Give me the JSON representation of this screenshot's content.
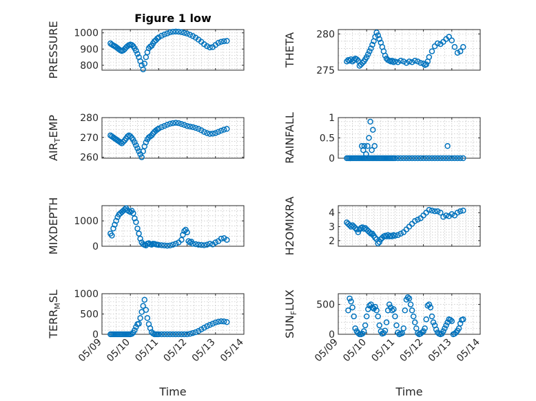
{
  "figure": {
    "title": "Figure 1 low",
    "xlabel": "Time"
  },
  "chart_data": [
    {
      "type": "scatter",
      "title": "Figure 1 low",
      "ylabel": "PRESSURE",
      "ylim": [
        770,
        1020
      ],
      "xticks": [
        "05/09",
        "05/10",
        "05/11",
        "05/12",
        "05/13",
        "05/14"
      ],
      "show_xticklabels": false,
      "yticks": [
        800,
        900,
        1000
      ],
      "grid": "minor",
      "marker": "circle-open",
      "color": "#0072bd",
      "x": [
        9.3,
        9.35,
        9.4,
        9.45,
        9.5,
        9.55,
        9.6,
        9.65,
        9.7,
        9.75,
        9.8,
        9.85,
        9.9,
        9.95,
        10.0,
        10.05,
        10.1,
        10.15,
        10.2,
        10.25,
        10.3,
        10.35,
        10.4,
        10.45,
        10.5,
        10.55,
        10.6,
        10.65,
        10.7,
        10.75,
        10.8,
        10.85,
        10.9,
        10.95,
        11.0,
        11.1,
        11.2,
        11.3,
        11.4,
        11.5,
        11.6,
        11.7,
        11.8,
        11.9,
        12.0,
        12.1,
        12.2,
        12.3,
        12.4,
        12.5,
        12.6,
        12.7,
        12.8,
        12.9,
        13.0,
        13.1,
        13.2,
        13.3,
        13.4
      ],
      "y": [
        935,
        928,
        922,
        918,
        912,
        905,
        898,
        892,
        888,
        892,
        900,
        910,
        918,
        924,
        928,
        925,
        918,
        905,
        890,
        870,
        850,
        825,
        800,
        775,
        810,
        850,
        880,
        905,
        915,
        920,
        935,
        948,
        955,
        965,
        972,
        982,
        990,
        996,
        1003,
        1007,
        1008,
        1007,
        1004,
        1000,
        995,
        988,
        980,
        970,
        958,
        945,
        930,
        918,
        910,
        912,
        925,
        938,
        945,
        948,
        950
      ]
    },
    {
      "type": "scatter",
      "ylabel": "THETA",
      "ylim": [
        275,
        280.6
      ],
      "xticks": [
        "05/09",
        "05/10",
        "05/11",
        "05/12",
        "05/13",
        "05/14"
      ],
      "show_xticklabels": false,
      "yticks": [
        275,
        280
      ],
      "grid": "minor",
      "marker": "circle-open",
      "color": "#0072bd",
      "x": [
        9.3,
        9.35,
        9.4,
        9.45,
        9.5,
        9.55,
        9.6,
        9.65,
        9.7,
        9.75,
        9.8,
        9.85,
        9.9,
        9.95,
        10.0,
        10.05,
        10.1,
        10.15,
        10.2,
        10.25,
        10.3,
        10.35,
        10.4,
        10.45,
        10.5,
        10.55,
        10.6,
        10.65,
        10.7,
        10.75,
        10.8,
        10.85,
        10.9,
        10.95,
        11.0,
        11.1,
        11.2,
        11.3,
        11.4,
        11.5,
        11.6,
        11.7,
        11.8,
        11.9,
        12.0,
        12.05,
        12.1,
        12.15,
        12.2,
        12.3,
        12.4,
        12.5,
        12.6,
        12.7,
        12.8,
        12.9,
        13.0,
        13.1,
        13.2,
        13.3,
        13.4
      ],
      "y": [
        276.2,
        276.4,
        276.3,
        276.5,
        276.2,
        276.4,
        276.6,
        276.5,
        276.3,
        275.6,
        275.8,
        276.0,
        276.2,
        276.5,
        276.8,
        277.2,
        277.6,
        278.0,
        278.5,
        279.0,
        279.6,
        280.2,
        279.8,
        279.3,
        278.8,
        278.2,
        277.6,
        277.0,
        276.6,
        276.4,
        276.3,
        276.2,
        276.3,
        276.1,
        276.2,
        276.1,
        276.3,
        276.2,
        276.0,
        276.2,
        276.1,
        276.3,
        276.2,
        276.0,
        275.9,
        275.7,
        275.8,
        276.2,
        276.8,
        277.6,
        278.3,
        278.7,
        278.6,
        278.9,
        279.3,
        279.6,
        279.1,
        278.2,
        277.4,
        277.6,
        278.2
      ]
    },
    {
      "type": "scatter",
      "ylabel": "AIR_TEMP",
      "ylim": [
        259.5,
        280
      ],
      "xticks": [
        "05/09",
        "05/10",
        "05/11",
        "05/12",
        "05/13",
        "05/14"
      ],
      "show_xticklabels": false,
      "yticks": [
        260,
        270,
        280
      ],
      "grid": "minor",
      "marker": "circle-open",
      "color": "#0072bd",
      "x": [
        9.3,
        9.35,
        9.4,
        9.45,
        9.5,
        9.55,
        9.6,
        9.65,
        9.7,
        9.75,
        9.8,
        9.85,
        9.9,
        9.95,
        10.0,
        10.05,
        10.1,
        10.15,
        10.2,
        10.25,
        10.3,
        10.35,
        10.4,
        10.45,
        10.5,
        10.55,
        10.6,
        10.65,
        10.7,
        10.75,
        10.8,
        10.85,
        10.9,
        10.95,
        11.0,
        11.1,
        11.2,
        11.3,
        11.4,
        11.5,
        11.6,
        11.7,
        11.8,
        11.9,
        12.0,
        12.1,
        12.2,
        12.3,
        12.4,
        12.5,
        12.6,
        12.7,
        12.8,
        12.9,
        13.0,
        13.1,
        13.2,
        13.3,
        13.4
      ],
      "y": [
        271,
        270.5,
        270,
        269.5,
        269,
        268.5,
        268,
        267.5,
        267,
        267.8,
        268.5,
        269.5,
        270.5,
        271,
        270.6,
        269.8,
        268.8,
        267.5,
        266,
        264.5,
        263,
        261.5,
        260,
        263,
        265.5,
        267.5,
        269,
        270,
        270.5,
        271,
        272,
        272.8,
        273.5,
        274,
        274.5,
        275.2,
        275.8,
        276.4,
        276.9,
        277.2,
        277.4,
        277.2,
        276.8,
        276.3,
        275.8,
        275.5,
        275.2,
        274.8,
        274.3,
        273.6,
        272.8,
        272.2,
        271.8,
        271.9,
        272.2,
        272.8,
        273.4,
        273.9,
        274.3
      ]
    },
    {
      "type": "scatter",
      "ylabel": "RAINFALL",
      "ylim": [
        0,
        1
      ],
      "xticks": [
        "05/09",
        "05/10",
        "05/11",
        "05/12",
        "05/13",
        "05/14"
      ],
      "show_xticklabels": false,
      "yticks": [
        0,
        0.5,
        1
      ],
      "grid": "minor",
      "marker": "circle-open",
      "color": "#0072bd",
      "x": [
        9.3,
        9.35,
        9.4,
        9.45,
        9.5,
        9.55,
        9.6,
        9.65,
        9.7,
        9.75,
        9.8,
        9.85,
        9.9,
        9.95,
        10.0,
        10.05,
        10.1,
        10.15,
        10.2,
        10.25,
        10.3,
        10.35,
        10.4,
        10.45,
        10.5,
        10.55,
        10.6,
        10.65,
        10.7,
        10.75,
        10.8,
        10.85,
        10.9,
        10.95,
        11.0,
        11.1,
        11.2,
        11.3,
        11.4,
        11.5,
        11.6,
        11.7,
        11.8,
        11.9,
        12.0,
        12.1,
        12.2,
        12.3,
        12.4,
        12.5,
        12.6,
        12.7,
        12.8,
        12.9,
        13.0,
        13.1,
        13.2,
        13.3,
        13.4,
        9.83,
        9.88,
        9.92,
        9.98,
        10.03,
        10.08,
        10.13,
        10.18,
        10.22,
        10.28,
        12.85
      ],
      "y": [
        0,
        0,
        0,
        0,
        0,
        0,
        0,
        0,
        0,
        0,
        0,
        0,
        0,
        0,
        0,
        0,
        0,
        0,
        0,
        0,
        0,
        0,
        0,
        0,
        0,
        0,
        0,
        0,
        0,
        0,
        0,
        0,
        0,
        0,
        0,
        0,
        0,
        0,
        0,
        0,
        0,
        0,
        0,
        0,
        0,
        0,
        0,
        0,
        0,
        0,
        0,
        0,
        0,
        0,
        0,
        0,
        0,
        0,
        0,
        0.3,
        0.2,
        0.3,
        0.1,
        0.3,
        0.5,
        0.9,
        0.2,
        0.7,
        0.3,
        0.3
      ]
    },
    {
      "type": "scatter",
      "ylabel": "MIXDEPTH",
      "ylim": [
        0,
        1600
      ],
      "xticks": [
        "05/09",
        "05/10",
        "05/11",
        "05/12",
        "05/13",
        "05/14"
      ],
      "show_xticklabels": false,
      "yticks": [
        0,
        1000
      ],
      "grid": "minor",
      "marker": "circle-open",
      "color": "#0072bd",
      "x": [
        9.3,
        9.35,
        9.4,
        9.45,
        9.5,
        9.55,
        9.6,
        9.65,
        9.7,
        9.75,
        9.8,
        9.85,
        9.9,
        9.95,
        10.0,
        10.05,
        10.1,
        10.15,
        10.2,
        10.25,
        10.3,
        10.35,
        10.4,
        10.45,
        10.5,
        10.55,
        10.6,
        10.65,
        10.7,
        10.75,
        10.8,
        10.85,
        10.9,
        10.95,
        11.0,
        11.1,
        11.2,
        11.3,
        11.4,
        11.5,
        11.6,
        11.7,
        11.8,
        11.85,
        11.9,
        11.95,
        12.0,
        12.05,
        12.1,
        12.15,
        12.2,
        12.3,
        12.4,
        12.5,
        12.6,
        12.7,
        12.8,
        12.9,
        13.0,
        13.1,
        13.2,
        13.3,
        13.4
      ],
      "y": [
        500,
        420,
        700,
        850,
        1000,
        1150,
        1250,
        1300,
        1350,
        1400,
        1450,
        1500,
        1420,
        1380,
        1350,
        1400,
        1300,
        1100,
        950,
        700,
        500,
        300,
        150,
        80,
        50,
        30,
        100,
        120,
        80,
        60,
        100,
        90,
        70,
        60,
        50,
        40,
        30,
        20,
        30,
        60,
        100,
        150,
        250,
        450,
        600,
        650,
        550,
        200,
        150,
        180,
        100,
        80,
        60,
        50,
        40,
        60,
        100,
        70,
        150,
        200,
        300,
        320,
        250
      ]
    },
    {
      "type": "scatter",
      "ylabel": "H2OMIXRA",
      "ylim": [
        1.6,
        4.5
      ],
      "xticks": [
        "05/09",
        "05/10",
        "05/11",
        "05/12",
        "05/13",
        "05/14"
      ],
      "show_xticklabels": false,
      "yticks": [
        2,
        3,
        4
      ],
      "grid": "minor",
      "marker": "circle-open",
      "color": "#0072bd",
      "x": [
        9.3,
        9.35,
        9.4,
        9.45,
        9.5,
        9.55,
        9.6,
        9.65,
        9.7,
        9.75,
        9.8,
        9.85,
        9.9,
        9.95,
        10.0,
        10.05,
        10.1,
        10.15,
        10.2,
        10.25,
        10.3,
        10.35,
        10.4,
        10.45,
        10.5,
        10.55,
        10.6,
        10.65,
        10.7,
        10.75,
        10.8,
        10.85,
        10.9,
        10.95,
        11.0,
        11.1,
        11.2,
        11.3,
        11.4,
        11.5,
        11.6,
        11.7,
        11.8,
        11.9,
        12.0,
        12.1,
        12.2,
        12.3,
        12.4,
        12.5,
        12.6,
        12.7,
        12.8,
        12.9,
        13.0,
        13.1,
        13.2,
        13.3,
        13.4
      ],
      "y": [
        3.3,
        3.2,
        3.1,
        3.0,
        3.1,
        3.0,
        2.9,
        2.8,
        2.6,
        2.8,
        2.9,
        2.95,
        2.85,
        2.9,
        2.8,
        2.7,
        2.6,
        2.5,
        2.5,
        2.35,
        2.2,
        2.1,
        1.8,
        1.9,
        2.1,
        2.2,
        2.3,
        2.35,
        2.3,
        2.4,
        2.3,
        2.35,
        2.3,
        2.4,
        2.35,
        2.4,
        2.5,
        2.6,
        2.8,
        3.0,
        3.2,
        3.4,
        3.5,
        3.6,
        3.8,
        4.0,
        4.2,
        4.15,
        4.1,
        4.1,
        4.0,
        3.7,
        3.8,
        3.75,
        3.9,
        3.8,
        4.0,
        4.1,
        4.15
      ]
    },
    {
      "type": "scatter",
      "ylabel": "TERR_MSL",
      "ylim": [
        0,
        1000
      ],
      "xticks": [
        "05/09",
        "05/10",
        "05/11",
        "05/12",
        "05/13",
        "05/14"
      ],
      "show_xticklabels": true,
      "yticks": [
        0,
        500,
        1000
      ],
      "grid": "minor",
      "marker": "circle-open",
      "color": "#0072bd",
      "x": [
        9.3,
        9.35,
        9.4,
        9.45,
        9.5,
        9.55,
        9.6,
        9.65,
        9.7,
        9.75,
        9.8,
        9.85,
        9.9,
        9.95,
        10.0,
        10.05,
        10.1,
        10.15,
        10.2,
        10.25,
        10.3,
        10.35,
        10.4,
        10.45,
        10.5,
        10.55,
        10.6,
        10.65,
        10.7,
        10.75,
        10.8,
        10.85,
        10.9,
        10.95,
        11.0,
        11.1,
        11.2,
        11.3,
        11.4,
        11.5,
        11.6,
        11.7,
        11.8,
        11.9,
        12.0,
        12.1,
        12.2,
        12.3,
        12.4,
        12.5,
        12.6,
        12.7,
        12.8,
        12.9,
        13.0,
        13.1,
        13.2,
        13.3,
        13.4
      ],
      "y": [
        0,
        0,
        0,
        0,
        0,
        0,
        0,
        0,
        0,
        0,
        0,
        0,
        0,
        0,
        0,
        10,
        40,
        100,
        180,
        250,
        260,
        400,
        550,
        700,
        850,
        600,
        400,
        250,
        150,
        50,
        20,
        0,
        0,
        0,
        0,
        0,
        0,
        0,
        0,
        0,
        0,
        0,
        0,
        0,
        0,
        10,
        30,
        50,
        80,
        120,
        160,
        200,
        230,
        260,
        290,
        310,
        320,
        315,
        300
      ]
    },
    {
      "type": "scatter",
      "ylabel": "SUN_FLUX",
      "ylim": [
        0,
        680
      ],
      "xticks": [
        "05/09",
        "05/10",
        "05/11",
        "05/12",
        "05/13",
        "05/14"
      ],
      "show_xticklabels": true,
      "yticks": [
        0,
        500
      ],
      "grid": "minor",
      "marker": "circle-open",
      "color": "#0072bd",
      "x": [
        9.35,
        9.4,
        9.45,
        9.5,
        9.55,
        9.6,
        9.65,
        9.7,
        9.75,
        9.8,
        9.85,
        9.9,
        9.95,
        10.0,
        10.05,
        10.1,
        10.15,
        10.2,
        10.25,
        10.3,
        10.35,
        10.4,
        10.45,
        10.5,
        10.55,
        10.6,
        10.65,
        10.7,
        10.75,
        10.8,
        10.85,
        10.9,
        10.95,
        11.0,
        11.05,
        11.1,
        11.15,
        11.2,
        11.25,
        11.3,
        11.35,
        11.4,
        11.45,
        11.5,
        11.55,
        11.6,
        11.65,
        11.7,
        11.75,
        11.8,
        11.85,
        11.9,
        11.95,
        12.0,
        12.05,
        12.1,
        12.15,
        12.2,
        12.25,
        12.3,
        12.35,
        12.4,
        12.45,
        12.5,
        12.55,
        12.6,
        12.65,
        12.7,
        12.75,
        12.8,
        12.85,
        12.9,
        12.95,
        13.0,
        13.05,
        13.1,
        13.15,
        13.2,
        13.25,
        13.3,
        13.35,
        13.4
      ],
      "y": [
        400,
        600,
        550,
        450,
        300,
        100,
        50,
        20,
        0,
        0,
        10,
        50,
        150,
        300,
        420,
        480,
        500,
        450,
        430,
        460,
        400,
        300,
        150,
        50,
        10,
        20,
        60,
        200,
        400,
        500,
        450,
        400,
        420,
        300,
        150,
        30,
        0,
        10,
        20,
        100,
        400,
        580,
        620,
        600,
        500,
        400,
        300,
        200,
        100,
        20,
        0,
        10,
        30,
        50,
        100,
        250,
        480,
        500,
        450,
        300,
        200,
        150,
        80,
        30,
        10,
        0,
        10,
        50,
        100,
        150,
        200,
        250,
        240,
        220,
        0,
        10,
        30,
        60,
        100,
        180,
        240,
        250
      ]
    }
  ]
}
